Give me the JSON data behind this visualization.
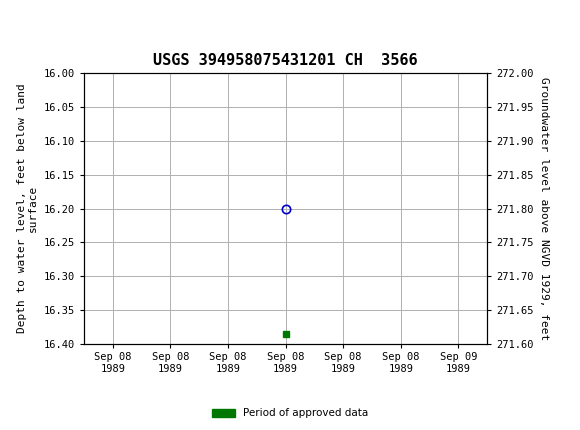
{
  "title": "USGS 394958075431201 CH  3566",
  "ylabel_left": "Depth to water level, feet below land\nsurface",
  "ylabel_right": "Groundwater level above NGVD 1929, feet",
  "ylim_left": [
    16.4,
    16.0
  ],
  "ylim_right": [
    271.6,
    272.0
  ],
  "yticks_left": [
    16.0,
    16.05,
    16.1,
    16.15,
    16.2,
    16.25,
    16.3,
    16.35,
    16.4
  ],
  "yticks_right": [
    272.0,
    271.95,
    271.9,
    271.85,
    271.8,
    271.75,
    271.7,
    271.65,
    271.6
  ],
  "data_point_x": 3.0,
  "data_point_y_circle": 16.2,
  "data_point_y_square": 16.385,
  "circle_color": "#0000cc",
  "square_color": "#007700",
  "background_color": "#ffffff",
  "plot_bg_color": "#ffffff",
  "grid_color": "#b0b0b0",
  "header_bg_color": "#1a6b3c",
  "header_text_color": "#ffffff",
  "title_fontsize": 11,
  "axis_label_fontsize": 8,
  "tick_fontsize": 7.5,
  "legend_label": "Period of approved data",
  "legend_color": "#007700",
  "xtick_labels": [
    "Sep 08\n1989",
    "Sep 08\n1989",
    "Sep 08\n1989",
    "Sep 08\n1989",
    "Sep 08\n1989",
    "Sep 08\n1989",
    "Sep 09\n1989"
  ],
  "xtick_positions": [
    0,
    1,
    2,
    3,
    4,
    5,
    6
  ],
  "xlim": [
    -0.5,
    6.5
  ]
}
